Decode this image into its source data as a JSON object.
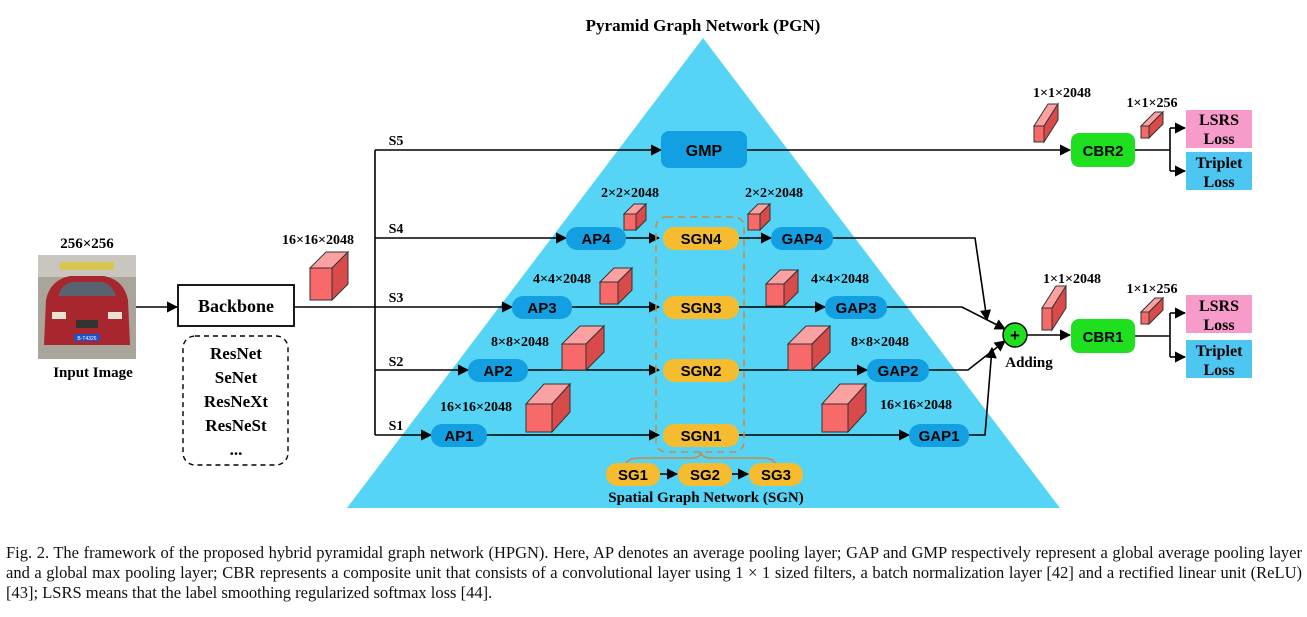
{
  "title": "Pyramid Graph Network (PGN)",
  "input": {
    "size_label": "256×256",
    "caption": "Input Image",
    "plate_text": "B·T4326"
  },
  "backbone": {
    "label": "Backbone",
    "options": [
      "ResNet",
      "SeNet",
      "ResNeXt",
      "ResNeSt",
      "..."
    ]
  },
  "backbone_output": "16×16×2048",
  "branches": [
    "S5",
    "S4",
    "S3",
    "S2",
    "S1"
  ],
  "nodes": {
    "gmp": "GMP",
    "ap": [
      "AP4",
      "AP3",
      "AP2",
      "AP1"
    ],
    "sgn": [
      "SGN4",
      "SGN3",
      "SGN2",
      "SGN1"
    ],
    "gap": [
      "GAP4",
      "GAP3",
      "GAP2",
      "GAP1"
    ],
    "sg": [
      "SG1",
      "SG2",
      "SG3"
    ]
  },
  "dims": {
    "ap4_out": "2×2×2048",
    "gap4_in": "2×2×2048",
    "ap3_out": "4×4×2048",
    "gap3_in": "4×4×2048",
    "ap2_out": "8×8×2048",
    "gap2_in": "8×8×2048",
    "ap1_out": "16×16×2048",
    "gap1_in": "16×16×2048",
    "cbr2_in": "1×1×2048",
    "cbr2_out": "1×1×256",
    "cbr1_in": "1×1×2048",
    "cbr1_out": "1×1×256"
  },
  "spatial_graph_label": "Spatial Graph Network (SGN)",
  "adding": {
    "label": "Adding",
    "symbol": "+"
  },
  "cbr": [
    "CBR2",
    "CBR1"
  ],
  "losses": {
    "lsrs_top": "LSRS",
    "lsrs_bottom": "Loss",
    "triplet_top": "Triplet",
    "triplet_bottom": "Loss"
  },
  "colors": {
    "pyramid": "#55d4f5",
    "blue_node": "#12a0e3",
    "yellow_node": "#f4bc2e",
    "green_node": "#1fe01f",
    "lsrs": "#f79bcb",
    "triplet": "#4ec6f2",
    "cube": "#f86a6a",
    "dash": "#c98a4a"
  },
  "caption": "Fig. 2.   The framework of the proposed hybrid pyramidal graph network (HPGN). Here, AP denotes an average pooling layer; GAP and GMP respectively represent a global average pooling layer and a global max pooling layer; CBR represents a composite unit that consists of a convolutional layer using 1 × 1 sized filters, a batch normalization layer [42] and a rectified linear unit (ReLU) [43]; LSRS means that the label smoothing regularized softmax loss [44]."
}
